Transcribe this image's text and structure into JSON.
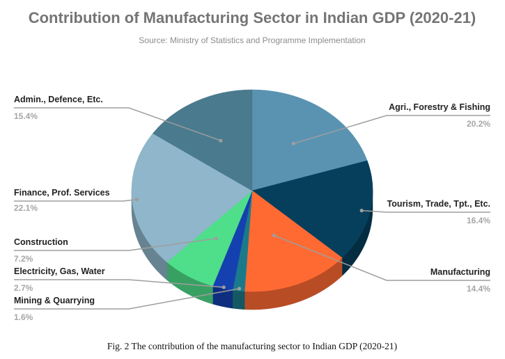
{
  "chart_data": {
    "type": "pie",
    "title": "Contribution of Manufacturing Sector in Indian GDP  (2020-21)",
    "subtitle": "Source: Ministry of Statistics and Programme Implementation",
    "unit": "%",
    "slices": [
      {
        "label": "Agri., Forestry & Fishing",
        "value": 20.2,
        "value_label": "20.2%",
        "color": "#5a93b1"
      },
      {
        "label": "Tourism, Trade, Tpt., Etc.",
        "value": 16.4,
        "value_label": "16.4%",
        "color": "#053f5c"
      },
      {
        "label": "Manufacturing",
        "value": 14.4,
        "value_label": "14.4%",
        "color": "#ff6a33"
      },
      {
        "label": "Mining & Quarrying",
        "value": 1.6,
        "value_label": "1.6%",
        "color": "#1b7a8a"
      },
      {
        "label": "Electricity, Gas, Water",
        "value": 2.7,
        "value_label": "2.7%",
        "color": "#1540b0"
      },
      {
        "label": "Construction",
        "value": 7.2,
        "value_label": "7.2%",
        "color": "#4fde8a"
      },
      {
        "label": "Finance, Prof. Services",
        "value": 22.1,
        "value_label": "22.1%",
        "color": "#8fb6ca"
      },
      {
        "label": "Admin., Defence, Etc.",
        "value": 15.4,
        "value_label": "15.4%",
        "color": "#4a7a8d"
      }
    ],
    "style": "3d-tilted",
    "legend": "none (labels with leader lines)"
  },
  "caption": "Fig. 2 The contribution of the manufacturing sector to Indian GDP (2020-21)"
}
